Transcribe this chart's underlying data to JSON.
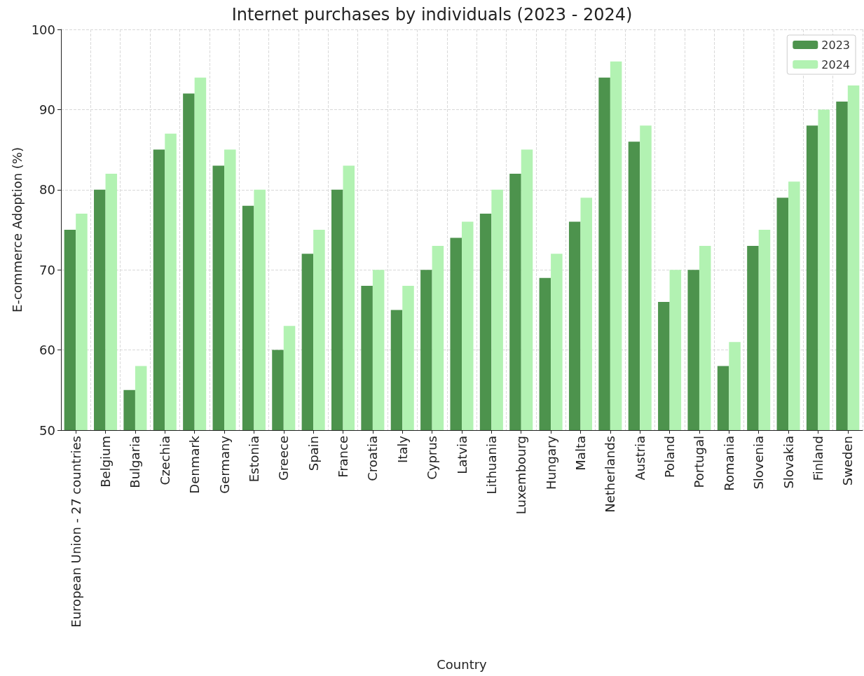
{
  "chart_data": {
    "type": "bar",
    "title": "Internet purchases by individuals (2023 - 2024)",
    "xlabel": "Country",
    "ylabel": "E-commerce Adoption (%)",
    "categories": [
      "European Union - 27 countries",
      "Belgium",
      "Bulgaria",
      "Czechia",
      "Denmark",
      "Germany",
      "Estonia",
      "Greece",
      "Spain",
      "France",
      "Croatia",
      "Italy",
      "Cyprus",
      "Latvia",
      "Lithuania",
      "Luxembourg",
      "Hungary",
      "Malta",
      "Netherlands",
      "Austria",
      "Poland",
      "Portugal",
      "Romania",
      "Slovenia",
      "Slovakia",
      "Finland",
      "Sweden"
    ],
    "series": [
      {
        "name": "2023",
        "color": "#4d934d",
        "values": [
          75,
          80,
          55,
          85,
          92,
          83,
          78,
          60,
          72,
          80,
          68,
          65,
          70,
          74,
          77,
          82,
          69,
          76,
          94,
          86,
          66,
          70,
          58,
          73,
          79,
          88,
          91
        ]
      },
      {
        "name": "2024",
        "color": "#b2f2b2",
        "values": [
          77,
          82,
          58,
          87,
          94,
          85,
          80,
          63,
          75,
          83,
          70,
          68,
          73,
          76,
          80,
          85,
          72,
          79,
          96,
          88,
          70,
          73,
          61,
          75,
          81,
          90,
          93
        ]
      }
    ],
    "ylim": [
      50,
      100
    ],
    "yticks": [
      50,
      60,
      70,
      80,
      90,
      100
    ],
    "grid": true,
    "legend": "top right"
  }
}
